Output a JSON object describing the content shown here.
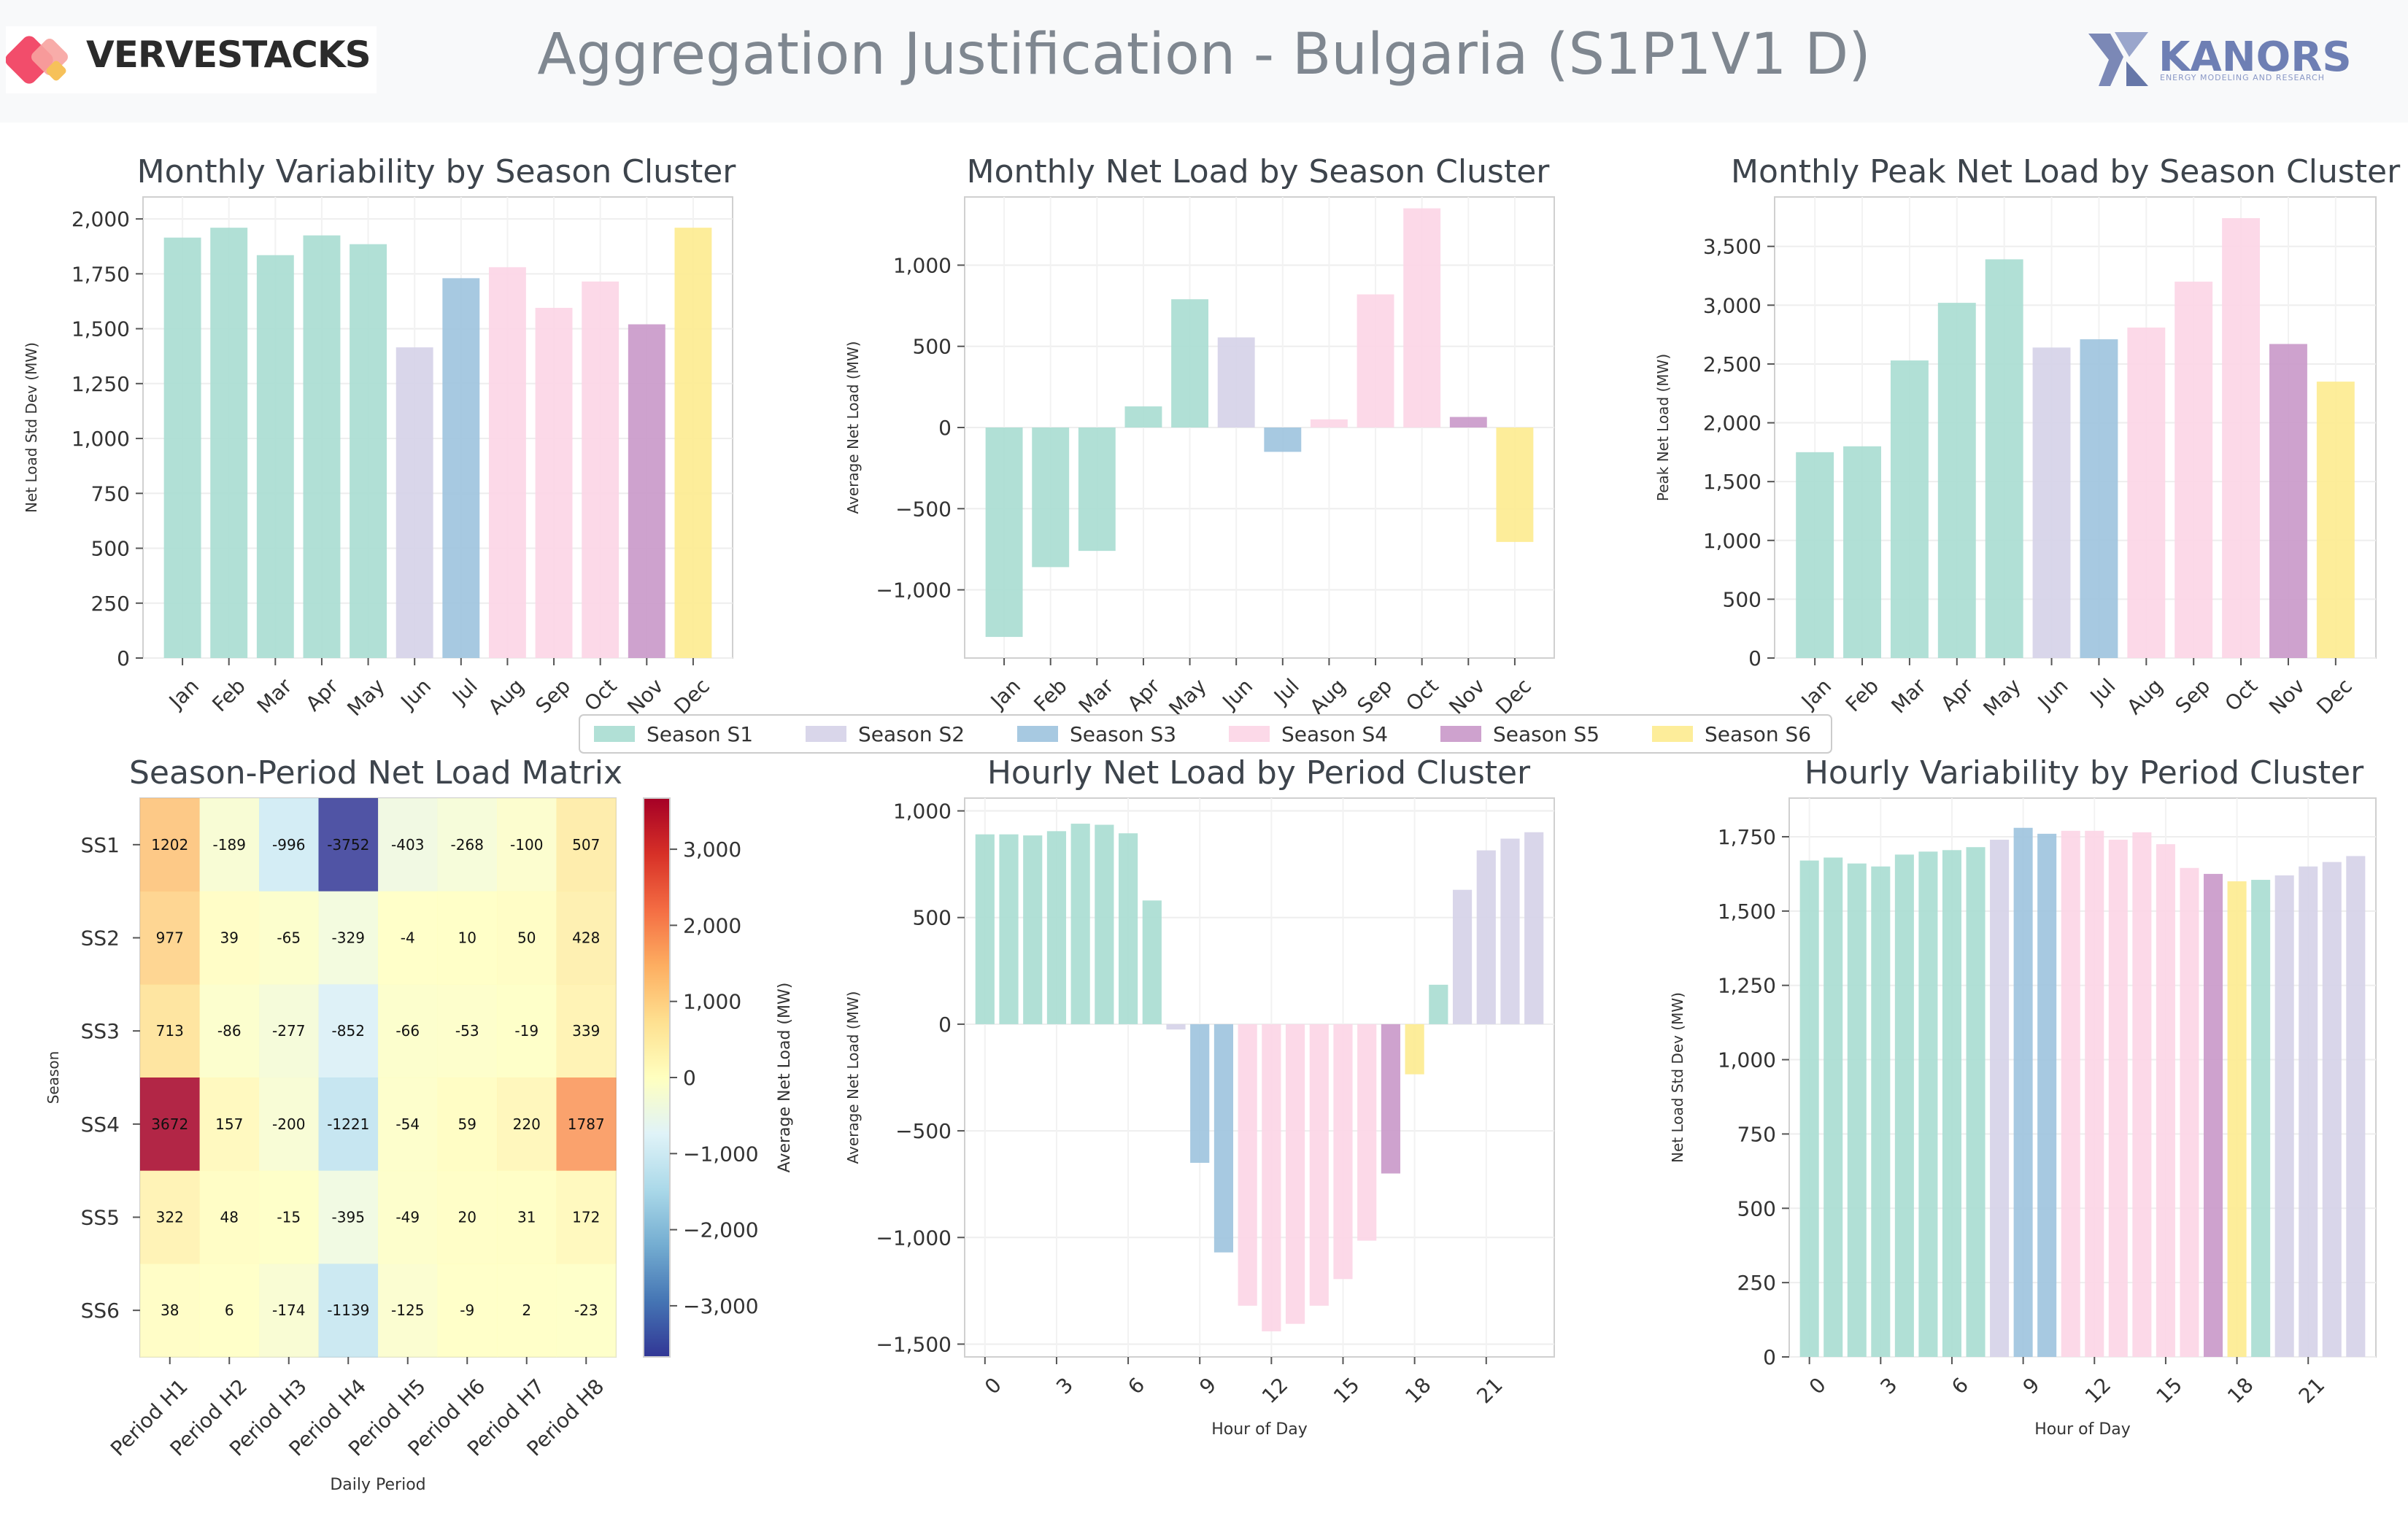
{
  "header": {
    "brand": "VERVESTACKS",
    "title": "Aggregation Justification - Bulgaria (S1P1V1 D)",
    "partner": "KANORS",
    "partner_tagline": "ENERGY MODELING AND RESEARCH"
  },
  "colors": {
    "S1": "#a8ddd2",
    "S2": "#d5d2e8",
    "S3": "#9dc3de",
    "S4": "#fcd5e6",
    "S5": "#c998c9",
    "S6": "#fdeb8f"
  },
  "legend": [
    {
      "key": "S1",
      "label": "Season S1"
    },
    {
      "key": "S2",
      "label": "Season S2"
    },
    {
      "key": "S3",
      "label": "Season S3"
    },
    {
      "key": "S4",
      "label": "Season S4"
    },
    {
      "key": "S5",
      "label": "Season S5"
    },
    {
      "key": "S6",
      "label": "Season S6"
    }
  ],
  "chart_data": [
    {
      "type": "bar",
      "title": "Monthly Variability by Season Cluster",
      "ylabel": "Net Load Std Dev (MW)",
      "xlabel": "",
      "categories": [
        "Jan",
        "Feb",
        "Mar",
        "Apr",
        "May",
        "Jun",
        "Jul",
        "Aug",
        "Sep",
        "Oct",
        "Nov",
        "Dec"
      ],
      "values": [
        1915,
        1960,
        1835,
        1925,
        1885,
        1415,
        1730,
        1780,
        1595,
        1715,
        1520,
        1960
      ],
      "clusters": [
        "S1",
        "S1",
        "S1",
        "S1",
        "S1",
        "S2",
        "S3",
        "S4",
        "S4",
        "S4",
        "S5",
        "S6"
      ],
      "ylim": [
        0,
        2100
      ],
      "yticks": [
        0,
        250,
        500,
        750,
        1000,
        1250,
        1500,
        1750,
        2000
      ],
      "grid": true
    },
    {
      "type": "bar",
      "title": "Monthly Net Load by Season Cluster",
      "ylabel": "Average Net Load (MW)",
      "xlabel": "",
      "categories": [
        "Jan",
        "Feb",
        "Mar",
        "Apr",
        "May",
        "Jun",
        "Jul",
        "Aug",
        "Sep",
        "Oct",
        "Nov",
        "Dec"
      ],
      "values": [
        -1290,
        -860,
        -760,
        130,
        790,
        555,
        -150,
        50,
        820,
        1350,
        65,
        -705
      ],
      "clusters": [
        "S1",
        "S1",
        "S1",
        "S1",
        "S1",
        "S2",
        "S3",
        "S4",
        "S4",
        "S4",
        "S5",
        "S6"
      ],
      "ylim": [
        -1420,
        1420
      ],
      "yticks": [
        -1000,
        -500,
        0,
        500,
        1000
      ],
      "grid": true
    },
    {
      "type": "bar",
      "title": "Monthly Peak Net Load by Season Cluster",
      "ylabel": "Peak Net Load (MW)",
      "xlabel": "",
      "categories": [
        "Jan",
        "Feb",
        "Mar",
        "Apr",
        "May",
        "Jun",
        "Jul",
        "Aug",
        "Sep",
        "Oct",
        "Nov",
        "Dec"
      ],
      "values": [
        1750,
        1800,
        2530,
        3020,
        3390,
        2640,
        2710,
        2810,
        3200,
        3740,
        2670,
        2350
      ],
      "clusters": [
        "S1",
        "S1",
        "S1",
        "S1",
        "S1",
        "S2",
        "S3",
        "S4",
        "S4",
        "S4",
        "S5",
        "S6"
      ],
      "ylim": [
        0,
        3920
      ],
      "yticks": [
        0,
        500,
        1000,
        1500,
        2000,
        2500,
        3000,
        3500
      ],
      "grid": true
    },
    {
      "type": "heatmap",
      "title": "Season-Period Net Load Matrix",
      "xlabel": "Daily Period",
      "ylabel": "Season",
      "colorbar_label": "Average Net Load (MW)",
      "columns": [
        "Period H1",
        "Period H2",
        "Period H3",
        "Period H4",
        "Period H5",
        "Period H6",
        "Period H7",
        "Period H8"
      ],
      "rows": [
        "SS1",
        "SS2",
        "SS3",
        "SS4",
        "SS5",
        "SS6"
      ],
      "values": [
        [
          1202,
          -189,
          -996,
          -3752,
          -403,
          -268,
          -100,
          507
        ],
        [
          977,
          39,
          -65,
          -329,
          -4,
          10,
          50,
          428
        ],
        [
          713,
          -86,
          -277,
          -852,
          -66,
          -53,
          -19,
          339
        ],
        [
          3672,
          157,
          -200,
          -1221,
          -54,
          59,
          220,
          1787
        ],
        [
          322,
          48,
          -15,
          -395,
          -49,
          20,
          31,
          172
        ],
        [
          38,
          6,
          -174,
          -1139,
          -125,
          -9,
          2,
          -23
        ]
      ],
      "vmin": -3672,
      "vmax": 3672,
      "colorbar_ticks": [
        -3000,
        -2000,
        -1000,
        0,
        1000,
        2000,
        3000
      ]
    },
    {
      "type": "bar",
      "title": "Hourly Net Load by Period Cluster",
      "xlabel": "Hour of Day",
      "ylabel": "Average Net Load (MW)",
      "x": [
        0,
        1,
        2,
        3,
        4,
        5,
        6,
        7,
        8,
        9,
        10,
        11,
        12,
        13,
        14,
        15,
        16,
        17,
        18,
        19,
        20,
        21,
        22,
        23
      ],
      "values": [
        890,
        890,
        885,
        905,
        940,
        935,
        895,
        580,
        -25,
        -650,
        -1070,
        -1320,
        -1440,
        -1405,
        -1320,
        -1195,
        -1015,
        -700,
        -235,
        185,
        630,
        815,
        870,
        900
      ],
      "clusters": [
        "S1",
        "S1",
        "S1",
        "S1",
        "S1",
        "S1",
        "S1",
        "S1",
        "S2",
        "S3",
        "S3",
        "S4",
        "S4",
        "S4",
        "S4",
        "S4",
        "S4",
        "S5",
        "S6",
        "S1",
        "S2",
        "S2",
        "S2",
        "S2"
      ],
      "ylim": [
        -1560,
        1060
      ],
      "xticks": [
        0,
        3,
        6,
        9,
        12,
        15,
        18,
        21
      ],
      "yticks": [
        -1500,
        -1000,
        -500,
        0,
        500,
        1000
      ],
      "grid": true
    },
    {
      "type": "bar",
      "title": "Hourly Variability by Period Cluster",
      "xlabel": "Hour of Day",
      "ylabel": "Net Load Std Dev (MW)",
      "x": [
        0,
        1,
        2,
        3,
        4,
        5,
        6,
        7,
        8,
        9,
        10,
        11,
        12,
        13,
        14,
        15,
        16,
        17,
        18,
        19,
        20,
        21,
        22,
        23
      ],
      "values": [
        1670,
        1680,
        1660,
        1650,
        1690,
        1700,
        1705,
        1715,
        1740,
        1780,
        1760,
        1770,
        1770,
        1740,
        1765,
        1725,
        1645,
        1625,
        1600,
        1605,
        1620,
        1650,
        1665,
        1685
      ],
      "clusters": [
        "S1",
        "S1",
        "S1",
        "S1",
        "S1",
        "S1",
        "S1",
        "S1",
        "S2",
        "S3",
        "S3",
        "S4",
        "S4",
        "S4",
        "S4",
        "S4",
        "S4",
        "S5",
        "S6",
        "S1",
        "S2",
        "S2",
        "S2",
        "S2"
      ],
      "ylim": [
        0,
        1880
      ],
      "xticks": [
        0,
        3,
        6,
        9,
        12,
        15,
        18,
        21
      ],
      "yticks": [
        0,
        250,
        500,
        750,
        1000,
        1250,
        1500,
        1750
      ],
      "grid": true
    }
  ]
}
